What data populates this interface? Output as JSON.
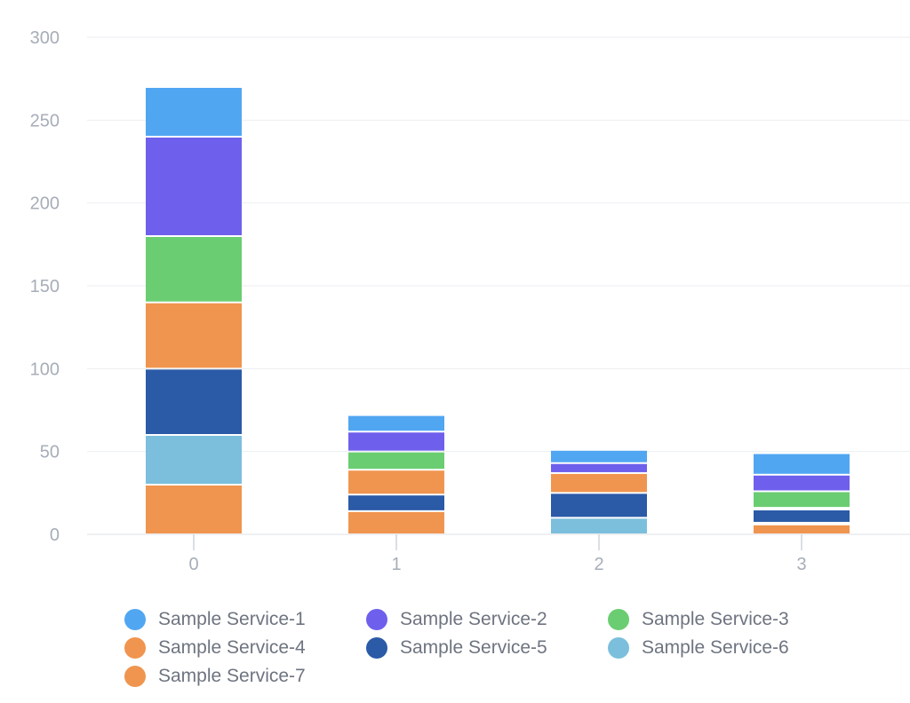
{
  "chart_data": {
    "type": "bar",
    "stacked": true,
    "categories": [
      "0",
      "1",
      "2",
      "3"
    ],
    "ylim": [
      0,
      300
    ],
    "yticks": [
      "0",
      "50",
      "100",
      "150",
      "200",
      "250",
      "300"
    ],
    "grid": true,
    "legend_position": "bottom",
    "series": [
      {
        "name": "Sample Service-7",
        "color": "#f0954f",
        "values": [
          30,
          14,
          0,
          6
        ]
      },
      {
        "name": "Sample Service-6",
        "color": "#7bbfdc",
        "values": [
          30,
          0,
          10,
          1
        ]
      },
      {
        "name": "Sample Service-5",
        "color": "#2b5aa7",
        "values": [
          40,
          10,
          15,
          8
        ]
      },
      {
        "name": "Sample Service-4",
        "color": "#f0954f",
        "values": [
          40,
          15,
          12,
          1
        ]
      },
      {
        "name": "Sample Service-3",
        "color": "#6bcd72",
        "values": [
          40,
          11,
          0,
          10
        ]
      },
      {
        "name": "Sample Service-2",
        "color": "#6e60ec",
        "values": [
          60,
          12,
          6,
          10
        ]
      },
      {
        "name": "Sample Service-1",
        "color": "#51a6f2",
        "values": [
          30,
          10,
          8,
          13
        ]
      }
    ],
    "legend_order": [
      "Sample Service-1",
      "Sample Service-2",
      "Sample Service-3",
      "Sample Service-4",
      "Sample Service-5",
      "Sample Service-6",
      "Sample Service-7"
    ]
  }
}
